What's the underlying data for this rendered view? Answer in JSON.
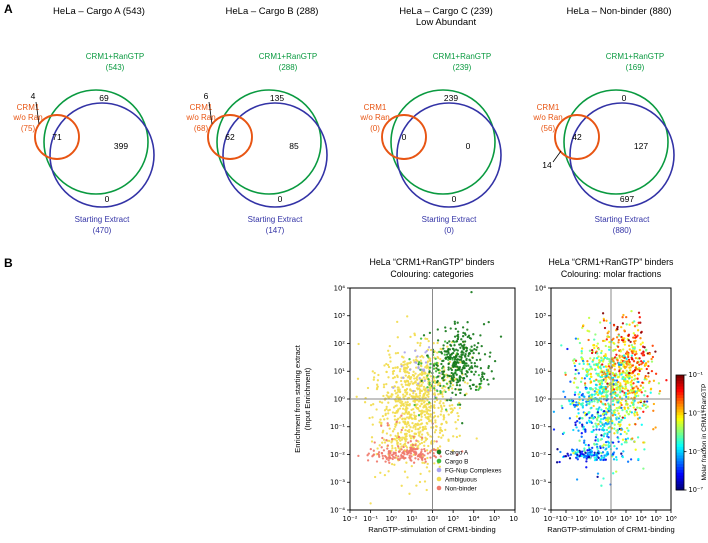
{
  "panel_labels": {
    "a": "A",
    "b": "B"
  },
  "colors": {
    "venn_green": "#0a9a40",
    "venn_orange": "#e85513",
    "venn_blue": "#3333a6",
    "crosshair_gray": "#8a8a8a",
    "cargo_a": "#177a1c",
    "cargo_b": "#3dbd3d",
    "fg_nup": "#a9a4ef",
    "ambiguous": "#f2dc4e",
    "non_binder": "#f0786a"
  },
  "chart_data": [
    {
      "type": "venn",
      "title": "HeLa – Cargo A (543)",
      "subtitle": "",
      "set_labels": {
        "green1": "CRM1+RanGTP",
        "green2": "(543)",
        "orange1": "CRM1",
        "orange2": "w/o Ran",
        "orange3": "(75)",
        "blue1": "Starting Extract",
        "blue2": "(470)"
      },
      "set_totals": {
        "crm1_plus_rangtp": 543,
        "crm1_without_ran": 75,
        "starting_extract": 470
      },
      "regions": {
        "green_only": 69,
        "green_blue": 399,
        "orange_overlap": 71,
        "blue_only": 0,
        "callout": 4
      }
    },
    {
      "type": "venn",
      "title": "HeLa – Cargo B (288)",
      "subtitle": "",
      "set_labels": {
        "green1": "CRM1+RanGTP",
        "green2": "(288)",
        "orange1": "CRM1",
        "orange2": "w/o Ran",
        "orange3": "(68)",
        "blue1": "Starting Extract",
        "blue2": "(147)"
      },
      "set_totals": {
        "crm1_plus_rangtp": 288,
        "crm1_without_ran": 68,
        "starting_extract": 147
      },
      "regions": {
        "green_only": 135,
        "green_blue": 85,
        "orange_overlap": 62,
        "blue_only": 0,
        "callout": 6
      }
    },
    {
      "type": "venn",
      "title": "HeLa – Cargo C (239)",
      "subtitle": "Low Abundant",
      "set_labels": {
        "green1": "CRM1+RanGTP",
        "green2": "(239)",
        "orange1": "CRM1",
        "orange2": "w/o Ran",
        "orange3": "(0)",
        "blue1": "Starting Extract",
        "blue2": "(0)"
      },
      "set_totals": {
        "crm1_plus_rangtp": 239,
        "crm1_without_ran": 0,
        "starting_extract": 0
      },
      "regions": {
        "green_only": 239,
        "green_blue": 0,
        "orange_overlap": 0,
        "blue_only": 0
      }
    },
    {
      "type": "venn",
      "title": "HeLa – Non-binder (880)",
      "subtitle": "",
      "set_labels": {
        "green1": "CRM1+RanGTP",
        "green2": "(169)",
        "orange1": "CRM1",
        "orange2": "w/o Ran",
        "orange3": "(56)",
        "blue1": "Starting Extract",
        "blue2": "(880)"
      },
      "set_totals": {
        "crm1_plus_rangtp": 169,
        "crm1_without_ran": 56,
        "starting_extract": 880
      },
      "regions": {
        "green_only": 0,
        "green_blue": 127,
        "orange_overlap": 42,
        "blue_only": 697,
        "callout": 14
      }
    },
    {
      "type": "scatter",
      "id": "categories",
      "title": "HeLa “CRM1+RanGTP” binders",
      "subtitle": "Colouring: categories",
      "xlabel": "RanGTP-stimulation of CRM1-binding",
      "ylabel": "Enrichment from starting extract (Input Enrichment)",
      "ylabel_lines": [
        "Enrichment from starting extract",
        "(Input Enrichment)"
      ],
      "xlim_log10": [
        -2,
        6
      ],
      "ylim_log10": [
        -4,
        4
      ],
      "x_ticklabels": [
        "10⁻²",
        "10⁻¹",
        "10⁰",
        "10¹",
        "10²",
        "10³",
        "10⁴",
        "10⁵",
        "10⁶"
      ],
      "y_ticklabels": [
        "10⁴",
        "10³",
        "10²",
        "10¹",
        "10⁰",
        "10⁻¹",
        "10⁻²",
        "10⁻³",
        "10⁻⁴"
      ],
      "crosshair_log10": {
        "x": 2,
        "y": 0
      },
      "legend": [
        {
          "label": "Cargo A",
          "color": "#177a1c"
        },
        {
          "label": "Cargo B",
          "color": "#3dbd3d"
        },
        {
          "label": "FG-Nup Complexes",
          "color": "#a9a4ef"
        },
        {
          "label": "Ambiguous",
          "color": "#f2dc4e"
        },
        {
          "label": "Non-binder",
          "color": "#f0786a"
        }
      ],
      "clusters": [
        {
          "category": "Ambiguous",
          "color": "#f2dc4e",
          "n": 650,
          "center_log10": [
            1.1,
            -0.4
          ],
          "sigma_log10": [
            1.0,
            1.1
          ]
        },
        {
          "category": "Ambiguous",
          "color": "#f2dc4e",
          "n": 200,
          "center_log10": [
            1.7,
            0.6
          ],
          "sigma_log10": [
            0.9,
            0.7
          ]
        },
        {
          "category": "FG-Nup Complexes",
          "color": "#a9a4ef",
          "n": 30,
          "center_log10": [
            1.3,
            0.9
          ],
          "sigma_log10": [
            0.7,
            0.6
          ]
        },
        {
          "category": "Non-binder",
          "color": "#f0786a",
          "n": 140,
          "center_log10": [
            0.7,
            -2.0
          ],
          "sigma_log10": [
            0.9,
            0.12
          ]
        },
        {
          "category": "Non-binder",
          "color": "#f0786a",
          "n": 25,
          "center_log10": [
            0.5,
            -1.4
          ],
          "sigma_log10": [
            0.8,
            0.35
          ]
        },
        {
          "category": "Cargo B",
          "color": "#3dbd3d",
          "n": 70,
          "center_log10": [
            2.6,
            0.9
          ],
          "sigma_log10": [
            0.8,
            0.6
          ]
        },
        {
          "category": "Cargo A",
          "color": "#177a1c",
          "n": 280,
          "center_log10": [
            3.3,
            1.3
          ],
          "sigma_log10": [
            0.6,
            0.55
          ]
        },
        {
          "category": "Cargo A",
          "color": "#177a1c",
          "n": 25,
          "center_log10": [
            4.3,
            1.8
          ],
          "sigma_log10": [
            0.6,
            0.8
          ]
        }
      ]
    },
    {
      "type": "scatter",
      "id": "molar-fractions",
      "title": "HeLa “CRM1+RanGTP” binders",
      "subtitle": "Colouring: molar fractions",
      "xlabel": "RanGTP-stimulation of CRM1-binding",
      "xlim_log10": [
        -2,
        6
      ],
      "ylim_log10": [
        -4,
        4
      ],
      "x_ticklabels": [
        "10⁻²",
        "10⁻¹",
        "10⁰",
        "10¹",
        "10²",
        "10³",
        "10⁴",
        "10⁵",
        "10⁶"
      ],
      "y_ticklabels": [
        "10⁴",
        "10³",
        "10²",
        "10¹",
        "10⁰",
        "10⁻¹",
        "10⁻²",
        "10⁻³",
        "10⁻⁴"
      ],
      "crosshair_log10": {
        "x": 2,
        "y": 0
      },
      "colormap": "jet",
      "value_rule": {
        "base": -0.05,
        "x_weight": 0.45,
        "y_weight": 0.65,
        "noise": 0.15
      },
      "colorbar": {
        "label": "Molar fraction in CRM1+RanGTP",
        "ticklabels": [
          "10⁻¹",
          "10⁻³",
          "10⁻⁵",
          "10⁻⁷"
        ]
      },
      "clusters": [
        {
          "n": 800,
          "center_log10": [
            1.6,
            0.1
          ],
          "sigma_log10": [
            1.2,
            1.1
          ]
        },
        {
          "n": 350,
          "center_log10": [
            3.2,
            1.1
          ],
          "sigma_log10": [
            0.8,
            0.8
          ]
        },
        {
          "n": 120,
          "center_log10": [
            0.7,
            -2.0
          ],
          "sigma_log10": [
            0.9,
            0.12
          ]
        }
      ]
    }
  ]
}
